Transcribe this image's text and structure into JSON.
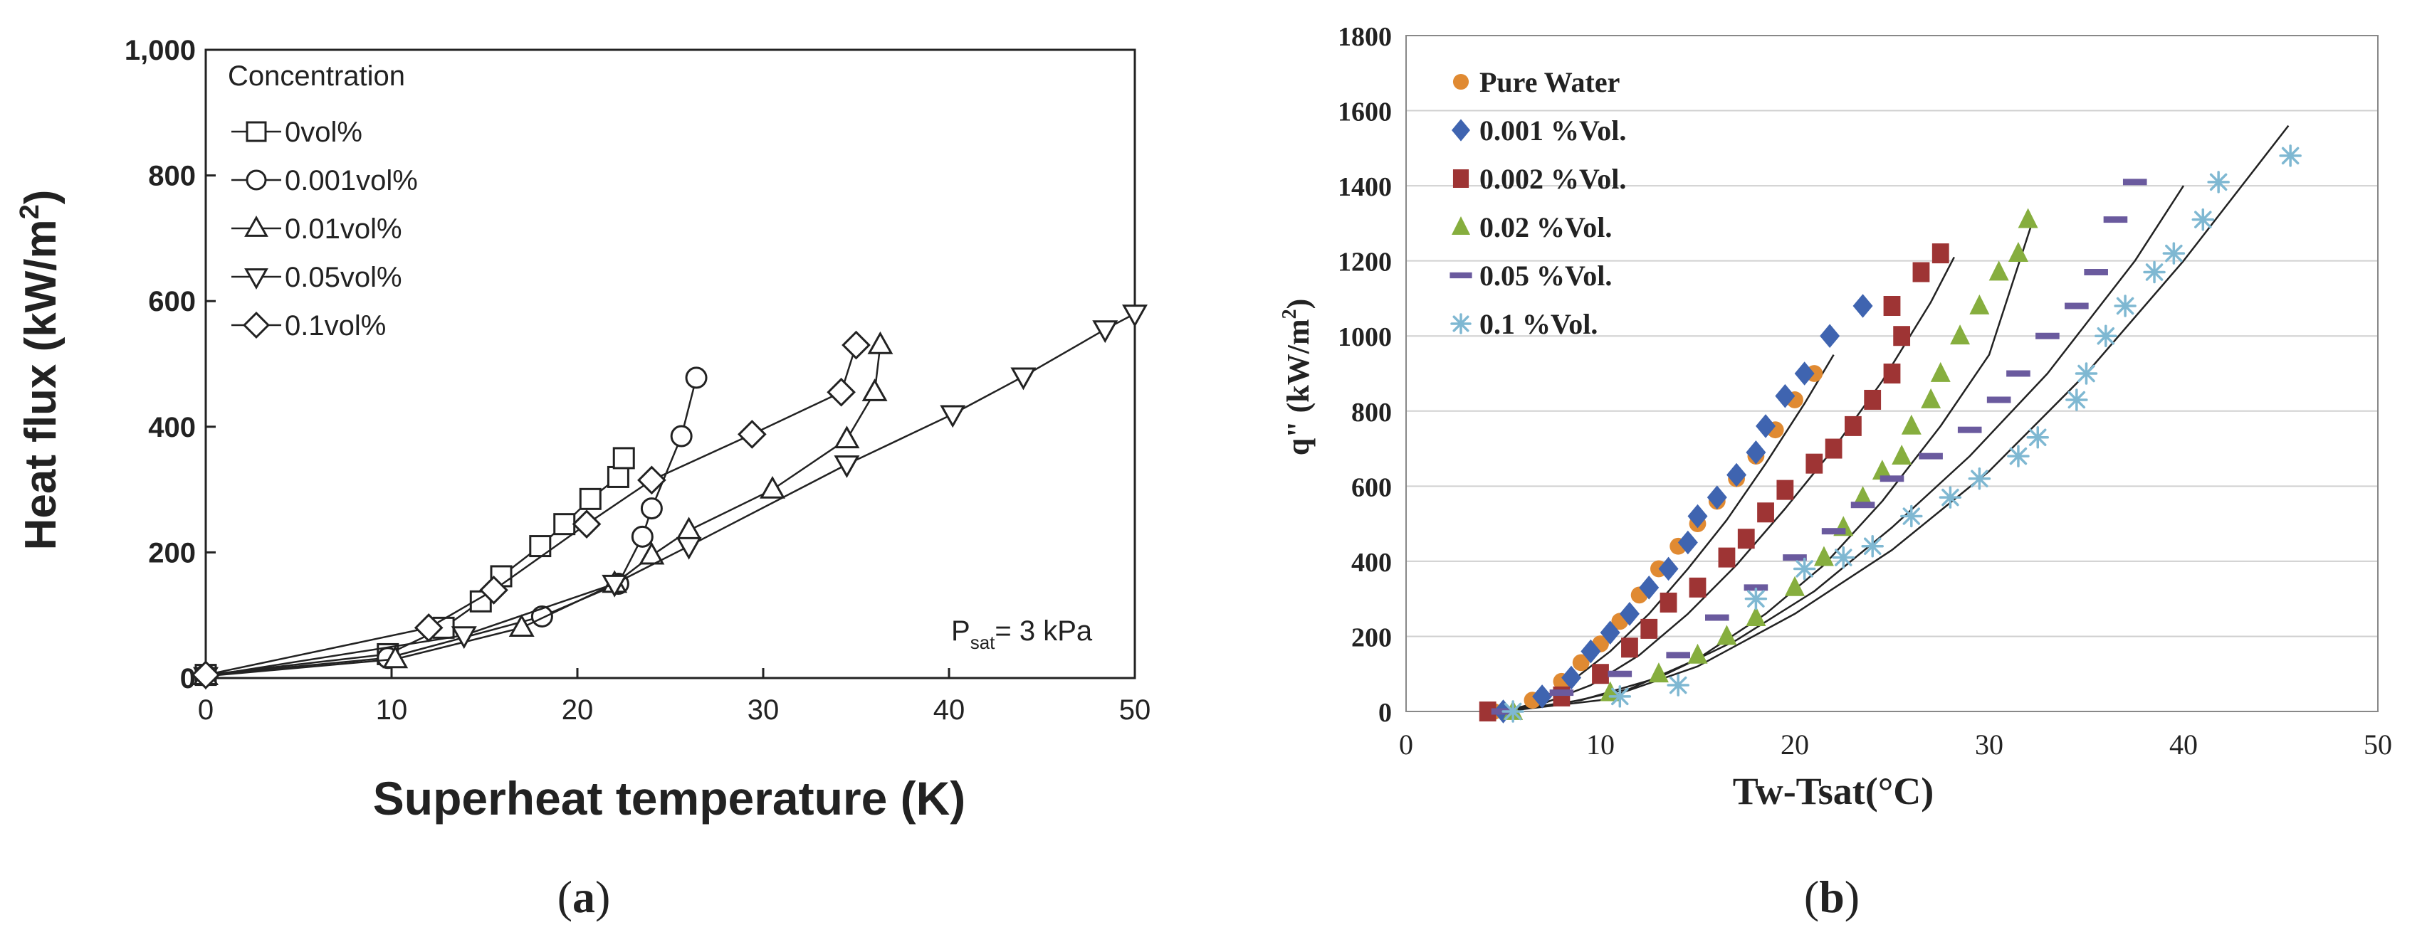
{
  "chart_data": [
    {
      "panel": "(a)",
      "type": "line",
      "xlabel": "Superheat temperature (K)",
      "ylabel": "Heat flux (kW/m",
      "ylabel_sup": "2",
      "ylabel_close": ")",
      "xlim": [
        0,
        50
      ],
      "ylim": [
        0,
        1000
      ],
      "xticks": [
        0,
        10,
        20,
        30,
        40,
        50
      ],
      "yticks": [
        0,
        200,
        400,
        600,
        800,
        1000
      ],
      "ytick_labels": [
        "0",
        "200",
        "400",
        "600",
        "800",
        "1,000"
      ],
      "legend_title": "Concentration",
      "annotation": {
        "main": "P",
        "sub": "sat",
        "rest": "= 3 kPa"
      },
      "series": [
        {
          "name": "0vol%",
          "marker": "square",
          "points": [
            [
              0,
              5
            ],
            [
              9.8,
              38
            ],
            [
              12.8,
              80
            ],
            [
              14.8,
              122
            ],
            [
              15.9,
              162
            ],
            [
              18,
              210
            ],
            [
              19.3,
              245
            ],
            [
              20.7,
              285
            ],
            [
              22.2,
              320
            ],
            [
              22.5,
              350
            ]
          ]
        },
        {
          "name": "0.001vol%",
          "marker": "circle",
          "points": [
            [
              0,
              5
            ],
            [
              9.8,
              32
            ],
            [
              18.1,
              98
            ],
            [
              22.2,
              150
            ],
            [
              23.5,
              225
            ],
            [
              24,
              270
            ],
            [
              25.6,
              385
            ],
            [
              26.4,
              478
            ]
          ]
        },
        {
          "name": "0.01vol%",
          "marker": "triangle-up",
          "points": [
            [
              0,
              3
            ],
            [
              10.2,
              30
            ],
            [
              17,
              80
            ],
            [
              22,
              150
            ],
            [
              24,
              195
            ],
            [
              26,
              235
            ],
            [
              30.5,
              300
            ],
            [
              34.5,
              380
            ],
            [
              36,
              455
            ],
            [
              36.3,
              530
            ]
          ]
        },
        {
          "name": "0.05vol%",
          "marker": "triangle-down",
          "points": [
            [
              0,
              3
            ],
            [
              13.9,
              68
            ],
            [
              22,
              150
            ],
            [
              26,
              210
            ],
            [
              34.5,
              340
            ],
            [
              40.2,
              420
            ],
            [
              44,
              480
            ],
            [
              48.4,
              555
            ],
            [
              50,
              580
            ]
          ]
        },
        {
          "name": "0.1vol%",
          "marker": "diamond",
          "points": [
            [
              0,
              5
            ],
            [
              12,
              80
            ],
            [
              15.5,
              140
            ],
            [
              20.5,
              245
            ],
            [
              24,
              315
            ],
            [
              29.4,
              388
            ],
            [
              34.2,
              455
            ],
            [
              35,
              530
            ]
          ]
        }
      ]
    },
    {
      "panel": "(b)",
      "type": "scatter",
      "xlabel": "Tw-Tsat(°C)",
      "ylabel": "q\" (kW/m",
      "ylabel_sup": "2",
      "ylabel_close": ")",
      "xlim": [
        0,
        50
      ],
      "ylim": [
        0,
        1800
      ],
      "xticks": [
        0,
        10,
        20,
        30,
        40,
        50
      ],
      "yticks": [
        0,
        200,
        400,
        600,
        800,
        1000,
        1200,
        1400,
        1600,
        1800
      ],
      "series": [
        {
          "name": "Pure Water",
          "marker": "circle",
          "color": "#E08A32",
          "points": [
            [
              4.5,
              0
            ],
            [
              6.5,
              30
            ],
            [
              8,
              80
            ],
            [
              9,
              130
            ],
            [
              10,
              180
            ],
            [
              11,
              240
            ],
            [
              12,
              310
            ],
            [
              13,
              380
            ],
            [
              14,
              440
            ],
            [
              15,
              500
            ],
            [
              16,
              560
            ],
            [
              17,
              620
            ],
            [
              18,
              680
            ],
            [
              19,
              750
            ],
            [
              20,
              830
            ],
            [
              21,
              900
            ]
          ]
        },
        {
          "name": "0.001 %Vol.",
          "marker": "diamond",
          "color": "#3F64B0",
          "points": [
            [
              5,
              0
            ],
            [
              7,
              40
            ],
            [
              8.5,
              90
            ],
            [
              9.5,
              160
            ],
            [
              10.5,
              210
            ],
            [
              11.5,
              260
            ],
            [
              12.5,
              330
            ],
            [
              13.5,
              380
            ],
            [
              14.5,
              450
            ],
            [
              15,
              520
            ],
            [
              16,
              570
            ],
            [
              17,
              630
            ],
            [
              18,
              690
            ],
            [
              18.5,
              760
            ],
            [
              19.5,
              840
            ],
            [
              20.5,
              900
            ],
            [
              21.8,
              1000
            ],
            [
              23.5,
              1080
            ]
          ]
        },
        {
          "name": "0.002 %Vol.",
          "marker": "square",
          "color": "#9E3434",
          "points": [
            [
              4.2,
              0
            ],
            [
              8,
              40
            ],
            [
              10,
              100
            ],
            [
              11.5,
              170
            ],
            [
              12.5,
              220
            ],
            [
              13.5,
              290
            ],
            [
              15,
              330
            ],
            [
              16.5,
              410
            ],
            [
              17.5,
              460
            ],
            [
              18.5,
              530
            ],
            [
              19.5,
              590
            ],
            [
              21,
              660
            ],
            [
              22,
              700
            ],
            [
              23,
              760
            ],
            [
              24,
              830
            ],
            [
              25,
              900
            ],
            [
              25.5,
              1000
            ],
            [
              25,
              1080
            ],
            [
              26.5,
              1170
            ],
            [
              27.5,
              1220
            ]
          ]
        },
        {
          "name": "0.02 %Vol.",
          "marker": "triangle",
          "color": "#86AE3E",
          "points": [
            [
              5.5,
              0
            ],
            [
              10.5,
              50
            ],
            [
              13,
              100
            ],
            [
              15,
              150
            ],
            [
              16.5,
              200
            ],
            [
              18,
              250
            ],
            [
              20,
              330
            ],
            [
              21.5,
              410
            ],
            [
              22.5,
              490
            ],
            [
              23.5,
              570
            ],
            [
              24.5,
              640
            ],
            [
              25.5,
              680
            ],
            [
              26,
              760
            ],
            [
              27,
              830
            ],
            [
              27.5,
              900
            ],
            [
              28.5,
              1000
            ],
            [
              29.5,
              1080
            ],
            [
              30.5,
              1170
            ],
            [
              31.5,
              1220
            ],
            [
              32,
              1310
            ]
          ]
        },
        {
          "name": "0.05 %Vol.",
          "marker": "dash",
          "color": "#6A5A9E",
          "points": [
            [
              5,
              0
            ],
            [
              8,
              50
            ],
            [
              11,
              100
            ],
            [
              14,
              150
            ],
            [
              16,
              250
            ],
            [
              18,
              330
            ],
            [
              20,
              410
            ],
            [
              22,
              480
            ],
            [
              23.5,
              550
            ],
            [
              25,
              620
            ],
            [
              27,
              680
            ],
            [
              29,
              750
            ],
            [
              30.5,
              830
            ],
            [
              31.5,
              900
            ],
            [
              33,
              1000
            ],
            [
              34.5,
              1080
            ],
            [
              35.5,
              1170
            ],
            [
              36.5,
              1310
            ],
            [
              37.5,
              1410
            ]
          ]
        },
        {
          "name": "0.1 %Vol.",
          "marker": "asterisk",
          "color": "#7FB8D2",
          "points": [
            [
              5.5,
              0
            ],
            [
              11,
              40
            ],
            [
              14,
              70
            ],
            [
              18,
              300
            ],
            [
              20.5,
              380
            ],
            [
              22.5,
              410
            ],
            [
              24,
              440
            ],
            [
              26,
              520
            ],
            [
              28,
              570
            ],
            [
              29.5,
              620
            ],
            [
              31.5,
              680
            ],
            [
              32.5,
              730
            ],
            [
              34.5,
              830
            ],
            [
              35,
              900
            ],
            [
              36,
              1000
            ],
            [
              37,
              1080
            ],
            [
              38.5,
              1170
            ],
            [
              39.5,
              1220
            ],
            [
              41,
              1310
            ],
            [
              41.8,
              1410
            ],
            [
              45.5,
              1480
            ]
          ]
        }
      ],
      "fit_curves": [
        [
          [
            5,
            0
          ],
          [
            6.5,
            20
          ],
          [
            8.5,
            80
          ],
          [
            10.5,
            160
          ],
          [
            12.5,
            260
          ],
          [
            14.5,
            380
          ],
          [
            16.5,
            510
          ],
          [
            18.5,
            660
          ],
          [
            20.5,
            820
          ],
          [
            22,
            950
          ]
        ],
        [
          [
            5,
            0
          ],
          [
            7,
            20
          ],
          [
            9.5,
            70
          ],
          [
            12,
            150
          ],
          [
            14.5,
            260
          ],
          [
            17,
            390
          ],
          [
            19.5,
            540
          ],
          [
            22,
            700
          ],
          [
            24.5,
            880
          ],
          [
            27,
            1090
          ],
          [
            28.2,
            1210
          ]
        ],
        [
          [
            5,
            0
          ],
          [
            8,
            20
          ],
          [
            11.5,
            60
          ],
          [
            15,
            140
          ],
          [
            18.5,
            260
          ],
          [
            21.5,
            390
          ],
          [
            24.5,
            560
          ],
          [
            27.5,
            760
          ],
          [
            30,
            950
          ],
          [
            32.2,
            1300
          ]
        ],
        [
          [
            5,
            0
          ],
          [
            9,
            30
          ],
          [
            13,
            90
          ],
          [
            17,
            190
          ],
          [
            21,
            320
          ],
          [
            25,
            490
          ],
          [
            29,
            680
          ],
          [
            33,
            900
          ],
          [
            37.5,
            1200
          ],
          [
            40,
            1400
          ]
        ],
        [
          [
            5,
            0
          ],
          [
            10,
            30
          ],
          [
            15,
            120
          ],
          [
            20,
            260
          ],
          [
            25,
            430
          ],
          [
            30,
            640
          ],
          [
            35,
            900
          ],
          [
            40,
            1200
          ],
          [
            45.4,
            1560
          ]
        ]
      ]
    }
  ],
  "captions": {
    "a": "(a)",
    "b": "(b)"
  }
}
